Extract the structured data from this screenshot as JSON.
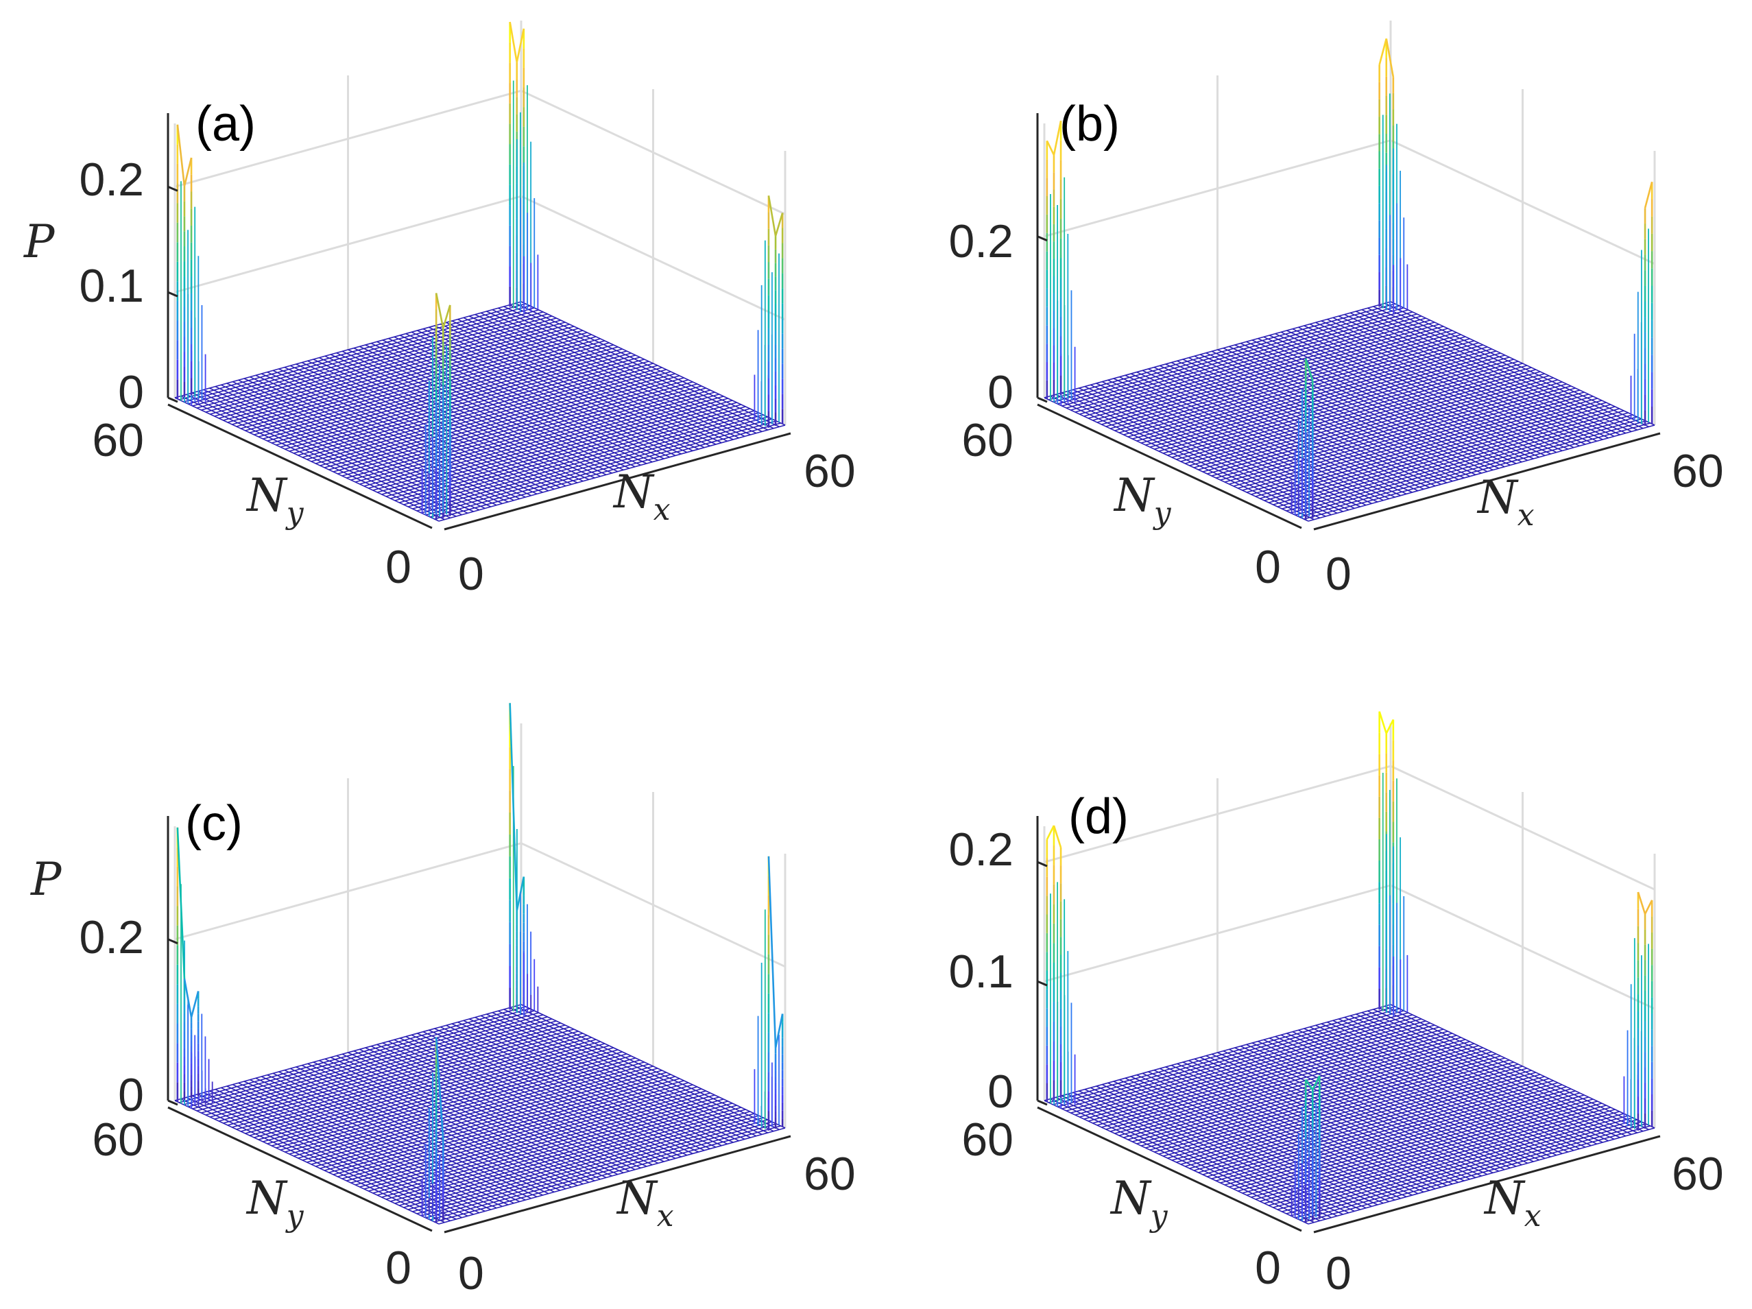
{
  "figure": {
    "colormap": [
      "#3e26a8",
      "#4743f8",
      "#2d7bf2",
      "#1aa7d9",
      "#0bbdaf",
      "#45c77a",
      "#a8c33a",
      "#f4ba3b",
      "#fad52e",
      "#f9fb0e"
    ],
    "mesh_line_color": "#2a1fb4",
    "grid_line_color": "#dcdcdc",
    "axis_line_color": "#262626"
  },
  "chart_data": [
    {
      "type": "surface",
      "panel_label": "(a)",
      "zlabel": "P",
      "xlabel": "N_x",
      "ylabel": "N_y",
      "xlim": [
        0,
        60
      ],
      "ylim": [
        0,
        60
      ],
      "zlim": [
        0,
        0.26
      ],
      "x_ticks": [
        "0",
        "60"
      ],
      "y_ticks": [
        "0",
        "60"
      ],
      "z_ticks": [
        "0",
        "0.1",
        "0.2"
      ],
      "grid_points": 60,
      "corner_peaks": [
        {
          "corner": "Nx=0,Ny=0",
          "heights": [
            0.215,
            0.18,
            0.2
          ]
        },
        {
          "corner": "Nx=0,Ny=60",
          "heights": [
            0.26,
            0.2,
            0.225
          ]
        },
        {
          "corner": "Nx=60,Ny=60",
          "heights": [
            0.26,
            0.23,
            0.27
          ]
        },
        {
          "corner": "Nx=60,Ny=0",
          "heights": [
            0.2,
            0.18,
            0.22
          ]
        }
      ]
    },
    {
      "type": "surface",
      "panel_label": "(b)",
      "zlabel": "",
      "xlabel": "N_x",
      "ylabel": "N_y",
      "xlim": [
        0,
        60
      ],
      "ylim": [
        0,
        60
      ],
      "zlim": [
        0,
        0.34
      ],
      "x_ticks": [
        "0",
        "60"
      ],
      "y_ticks": [
        "0",
        "60"
      ],
      "z_ticks": [
        "0",
        "0.2"
      ],
      "grid_points": 60,
      "corner_peaks": [
        {
          "corner": "Nx=0,Ny=0",
          "heights": [
            0.2,
            0.17
          ]
        },
        {
          "corner": "Nx=0,Ny=60",
          "heights": [
            0.32,
            0.3,
            0.34
          ]
        },
        {
          "corner": "Nx=60,Ny=60",
          "heights": [
            0.28,
            0.33,
            0.3
          ]
        },
        {
          "corner": "Nx=60,Ny=0",
          "heights": [
            0.3,
            0.27
          ]
        }
      ]
    },
    {
      "type": "surface",
      "panel_label": "(c)",
      "zlabel": "P",
      "xlabel": "N_x",
      "ylabel": "N_y",
      "xlim": [
        0,
        60
      ],
      "ylim": [
        0,
        60
      ],
      "zlim": [
        0,
        0.34
      ],
      "x_ticks": [
        "0",
        "60"
      ],
      "y_ticks": [
        "0",
        "60"
      ],
      "z_ticks": [
        "0",
        "0.2"
      ],
      "grid_points": 60,
      "corner_peaks": [
        {
          "corner": "Nx=0,Ny=0",
          "heights": [
            0.23,
            0.1
          ]
        },
        {
          "corner": "Nx=0,Ny=60",
          "heights": [
            0.34,
            0.15,
            0.1,
            0.13
          ]
        },
        {
          "corner": "Nx=60,Ny=60",
          "heights": [
            0.16,
            0.12,
            0.38
          ]
        },
        {
          "corner": "Nx=60,Ny=0",
          "heights": [
            0.14,
            0.1,
            0.34
          ]
        }
      ]
    },
    {
      "type": "surface",
      "panel_label": "(d)",
      "zlabel": "",
      "xlabel": "N_x",
      "ylabel": "N_y",
      "xlim": [
        0,
        60
      ],
      "ylim": [
        0,
        60
      ],
      "zlim": [
        0,
        0.23
      ],
      "x_ticks": [
        "0",
        "60"
      ],
      "y_ticks": [
        "0",
        "60"
      ],
      "z_ticks": [
        "0",
        "0.1",
        "0.2"
      ],
      "grid_points": 60,
      "corner_peaks": [
        {
          "corner": "Nx=0,Ny=0",
          "heights": [
            0.12,
            0.11,
            0.12
          ]
        },
        {
          "corner": "Nx=0,Ny=60",
          "heights": [
            0.22,
            0.23,
            0.21
          ]
        },
        {
          "corner": "Nx=60,Ny=60",
          "heights": [
            0.24,
            0.23,
            0.25
          ]
        },
        {
          "corner": "Nx=60,Ny=0",
          "heights": [
            0.19,
            0.18,
            0.2
          ]
        }
      ]
    }
  ]
}
